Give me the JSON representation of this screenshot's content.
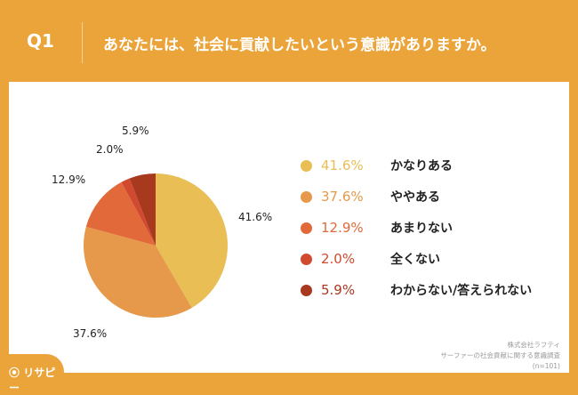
{
  "header": {
    "q": "Q1",
    "title": "あなたには、社会に貢献したいという意識がありますか。"
  },
  "chart_data": {
    "type": "pie",
    "title": "あなたには、社会に貢献したいという意識がありますか。",
    "categories": [
      "かなりある",
      "ややある",
      "あまりない",
      "全くない",
      "わからない/答えられない"
    ],
    "values": [
      41.6,
      37.6,
      12.9,
      2.0,
      5.9
    ],
    "labels": [
      "41.6%",
      "37.6%",
      "12.9%",
      "2.0%",
      "5.9%"
    ],
    "colors": [
      "#E8BE55",
      "#E6994A",
      "#E2693A",
      "#D14A30",
      "#A8381E"
    ],
    "legend": "right"
  },
  "source": {
    "company": "株式会社ラフティ",
    "survey": "サーファーの社会貢献に関する意識調査",
    "n": "(n=101)"
  },
  "logo": "リサピー"
}
